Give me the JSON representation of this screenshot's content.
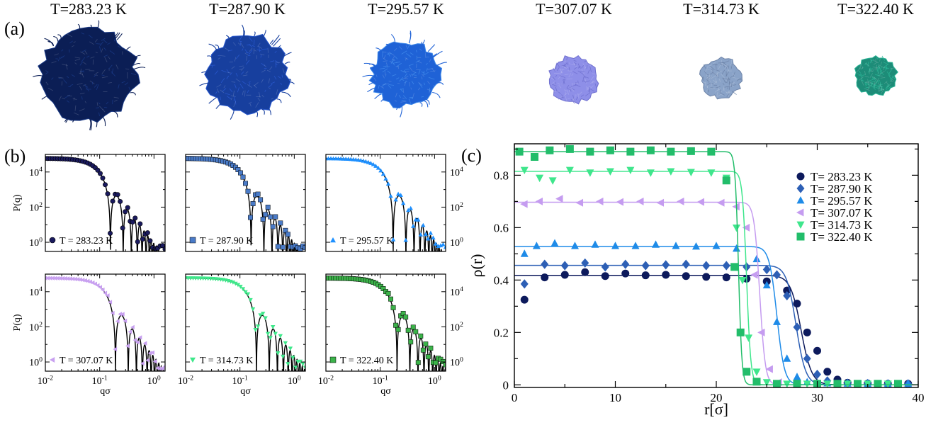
{
  "panel_labels": {
    "a": "(a)",
    "b": "(b)",
    "c": "(c)"
  },
  "snapshots": [
    {
      "label": "T=283.23 K",
      "color": "#0b1e55",
      "color2": "#1a3a86"
    },
    {
      "label": "T=287.90 K",
      "color": "#173f9e",
      "color2": "#2a5ad0"
    },
    {
      "label": "T=295.57 K",
      "color": "#1f62d6",
      "color2": "#3f8aea"
    },
    {
      "label": "T=307.07 K",
      "color": "#8e8fe8",
      "color2": "#6f70cf"
    },
    {
      "label": "T=314.73 K",
      "color": "#8aa3c8",
      "color2": "#6e84a8"
    },
    {
      "label": "T=322.40 K",
      "color": "#1d8c78",
      "color2": "#2bb596"
    }
  ],
  "chart_data": [
    {
      "type": "line",
      "panel": "b",
      "log_x": true,
      "log_y": true,
      "xlabel": "qσ",
      "ylabel": "P(q)",
      "xlim": [
        0.01,
        1.6
      ],
      "ylim": [
        0.3,
        100000
      ],
      "x_ticks": [
        "10-2",
        "10-1",
        "100"
      ],
      "y_ticks": [
        "100",
        "102",
        "104"
      ],
      "subplots": [
        {
          "legend": "T = 283.23 K",
          "color": "#1a1a5e",
          "marker": "circle",
          "radius": 28.5
        },
        {
          "legend": "T = 287.90 K",
          "color": "#4a7bc8",
          "marker": "square",
          "radius": 28.0
        },
        {
          "legend": "T = 295.57 K",
          "color": "#1e90ff",
          "marker": "triangle-up",
          "radius": 26.0
        },
        {
          "legend": "T = 307.07 K",
          "color": "#c8a0f0",
          "marker": "triangle-left",
          "radius": 23.0
        },
        {
          "legend": "T = 314.73 K",
          "color": "#3ee88a",
          "marker": "triangle-down",
          "radius": 22.3
        },
        {
          "legend": "T = 322.40 K",
          "color": "#3cb34a",
          "marker": "square",
          "radius": 22.0
        }
      ]
    },
    {
      "type": "scatter",
      "panel": "c",
      "xlabel": "r[σ]",
      "ylabel": "ρ(r)",
      "xlim": [
        0,
        40
      ],
      "ylim": [
        -0.01,
        0.92
      ],
      "x_ticks": [
        0,
        10,
        20,
        30,
        40
      ],
      "y_ticks": [
        0,
        0.2,
        0.4,
        0.6,
        0.8
      ],
      "legend_position": "top-right",
      "series": [
        {
          "name": "T= 283.23 K",
          "color": "#0d1a5c",
          "marker": "circle",
          "rho": 0.418,
          "R": 28.4,
          "w": 1.05,
          "points": [
            [
              1.0,
              0.325
            ],
            [
              3,
              0.41
            ],
            [
              5,
              0.42
            ],
            [
              7,
              0.43
            ],
            [
              9,
              0.415
            ],
            [
              11,
              0.425
            ],
            [
              13,
              0.418
            ],
            [
              15,
              0.42
            ],
            [
              17,
              0.415
            ],
            [
              19,
              0.412
            ],
            [
              21,
              0.41
            ],
            [
              23,
              0.405
            ],
            [
              25,
              0.395
            ],
            [
              27,
              0.36
            ],
            [
              28,
              0.31
            ],
            [
              29,
              0.2
            ],
            [
              30,
              0.13
            ],
            [
              31,
              0.05
            ],
            [
              32,
              0.02
            ],
            [
              33,
              0.008
            ],
            [
              35,
              0.005
            ],
            [
              37,
              0.004
            ],
            [
              39,
              0.004
            ]
          ]
        },
        {
          "name": "T= 287.90 K",
          "color": "#2d5fb5",
          "marker": "diamond",
          "rho": 0.456,
          "R": 27.9,
          "w": 0.95,
          "points": [
            [
              1.0,
              0.385
            ],
            [
              3,
              0.46
            ],
            [
              5,
              0.455
            ],
            [
              7,
              0.465
            ],
            [
              9,
              0.45
            ],
            [
              11,
              0.46
            ],
            [
              13,
              0.455
            ],
            [
              15,
              0.458
            ],
            [
              17,
              0.46
            ],
            [
              19,
              0.455
            ],
            [
              21,
              0.455
            ],
            [
              23,
              0.45
            ],
            [
              25,
              0.44
            ],
            [
              26,
              0.42
            ],
            [
              27,
              0.34
            ],
            [
              28,
              0.22
            ],
            [
              29,
              0.1
            ],
            [
              30,
              0.04
            ],
            [
              31,
              0.015
            ],
            [
              33,
              0.006
            ],
            [
              35,
              0.005
            ],
            [
              37,
              0.004
            ],
            [
              39,
              0.004
            ]
          ]
        },
        {
          "name": "T= 295.57 K",
          "color": "#1e8be8",
          "marker": "triangle-up",
          "rho": 0.528,
          "R": 26.0,
          "w": 0.75,
          "points": [
            [
              1.0,
              0.5
            ],
            [
              2.2,
              0.53
            ],
            [
              4,
              0.54
            ],
            [
              6,
              0.53
            ],
            [
              8,
              0.535
            ],
            [
              10,
              0.53
            ],
            [
              12,
              0.53
            ],
            [
              14,
              0.535
            ],
            [
              16,
              0.53
            ],
            [
              18,
              0.528
            ],
            [
              20,
              0.53
            ],
            [
              22,
              0.52
            ],
            [
              24,
              0.48
            ],
            [
              25,
              0.38
            ],
            [
              26,
              0.24
            ],
            [
              27,
              0.1
            ],
            [
              28,
              0.03
            ],
            [
              29,
              0.01
            ],
            [
              31,
              0.006
            ],
            [
              33,
              0.005
            ],
            [
              35,
              0.004
            ],
            [
              37,
              0.004
            ],
            [
              39,
              0.004
            ]
          ]
        },
        {
          "name": "T= 307.07 K",
          "color": "#c59cf0",
          "marker": "triangle-left",
          "rho": 0.697,
          "R": 24.3,
          "w": 0.55,
          "points": [
            [
              1.0,
              0.69
            ],
            [
              2.5,
              0.7
            ],
            [
              4.5,
              0.71
            ],
            [
              6.5,
              0.695
            ],
            [
              8.5,
              0.7
            ],
            [
              10.5,
              0.698
            ],
            [
              12.5,
              0.7
            ],
            [
              14.5,
              0.695
            ],
            [
              16.5,
              0.7
            ],
            [
              18.5,
              0.698
            ],
            [
              20.5,
              0.695
            ],
            [
              22,
              0.68
            ],
            [
              23,
              0.6
            ],
            [
              23.8,
              0.42
            ],
            [
              24.5,
              0.2
            ],
            [
              25.3,
              0.06
            ],
            [
              26.2,
              0.01
            ],
            [
              28,
              0.004
            ],
            [
              30,
              0.004
            ],
            [
              32,
              0.004
            ],
            [
              34,
              0.004
            ],
            [
              36,
              0.004
            ],
            [
              38,
              0.004
            ]
          ]
        },
        {
          "name": "T= 314.73 K",
          "color": "#3fe68c",
          "marker": "triangle-down",
          "rho": 0.815,
          "R": 23.0,
          "w": 0.42,
          "points": [
            [
              1.0,
              0.82
            ],
            [
              2.5,
              0.79
            ],
            [
              3.8,
              0.78
            ],
            [
              5.5,
              0.82
            ],
            [
              7.5,
              0.81
            ],
            [
              9.5,
              0.815
            ],
            [
              11.5,
              0.82
            ],
            [
              13.5,
              0.81
            ],
            [
              15.5,
              0.815
            ],
            [
              17.5,
              0.812
            ],
            [
              19.5,
              0.81
            ],
            [
              21,
              0.79
            ],
            [
              22,
              0.6
            ],
            [
              22.6,
              0.4
            ],
            [
              23.2,
              0.18
            ],
            [
              24,
              0.05
            ],
            [
              25,
              0.01
            ],
            [
              27,
              0.004
            ],
            [
              29,
              0.004
            ],
            [
              31,
              0.004
            ],
            [
              33,
              0.004
            ],
            [
              35,
              0.004
            ],
            [
              37,
              0.004
            ]
          ]
        },
        {
          "name": "T= 322.40 K",
          "color": "#22bd6a",
          "marker": "square",
          "rho": 0.89,
          "R": 22.2,
          "w": 0.33,
          "points": [
            [
              0.5,
              0.89
            ],
            [
              2,
              0.87
            ],
            [
              3.5,
              0.895
            ],
            [
              5.5,
              0.9
            ],
            [
              7.5,
              0.89
            ],
            [
              9.5,
              0.895
            ],
            [
              11.5,
              0.89
            ],
            [
              13.5,
              0.895
            ],
            [
              15.5,
              0.89
            ],
            [
              17.5,
              0.892
            ],
            [
              19.5,
              0.89
            ],
            [
              21,
              0.78
            ],
            [
              21.8,
              0.45
            ],
            [
              22.4,
              0.2
            ],
            [
              23,
              0.05
            ],
            [
              24,
              0.012
            ],
            [
              26,
              0.004
            ],
            [
              28,
              0.004
            ],
            [
              30,
              0.004
            ],
            [
              32,
              0.004
            ],
            [
              34,
              0.004
            ],
            [
              36,
              0.004
            ],
            [
              38,
              0.004
            ]
          ]
        }
      ]
    }
  ]
}
